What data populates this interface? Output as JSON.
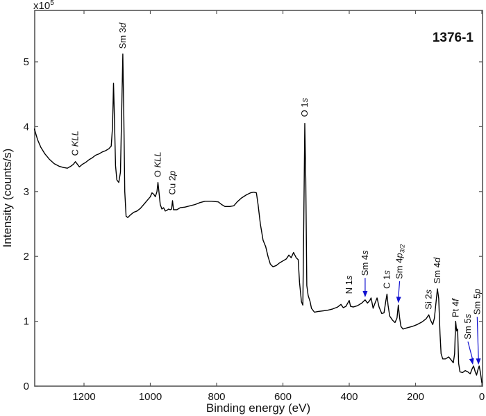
{
  "chart_data": {
    "type": "line",
    "title": "1376-1",
    "xlabel": "Binding energy (eV)",
    "ylabel": "Intensity (counts/s)",
    "y_multiplier_label": "x10",
    "y_multiplier_exp": "5",
    "xlim": [
      1350,
      0
    ],
    "ylim": [
      0,
      5.8
    ],
    "x_reversed": true,
    "grid": false,
    "x_ticks": [
      1200,
      1000,
      800,
      600,
      400,
      200,
      0
    ],
    "y_ticks": [
      0,
      1,
      2,
      3,
      4,
      5
    ],
    "series": [
      {
        "name": "XPS survey spectrum",
        "color": "#000000",
        "points": [
          [
            1350,
            3.97
          ],
          [
            1340,
            3.8
          ],
          [
            1330,
            3.68
          ],
          [
            1318,
            3.58
          ],
          [
            1305,
            3.5
          ],
          [
            1290,
            3.43
          ],
          [
            1275,
            3.39
          ],
          [
            1262,
            3.37
          ],
          [
            1250,
            3.36
          ],
          [
            1240,
            3.39
          ],
          [
            1232,
            3.42
          ],
          [
            1226,
            3.46
          ],
          [
            1220,
            3.42
          ],
          [
            1214,
            3.38
          ],
          [
            1205,
            3.42
          ],
          [
            1195,
            3.45
          ],
          [
            1185,
            3.49
          ],
          [
            1175,
            3.52
          ],
          [
            1165,
            3.56
          ],
          [
            1155,
            3.58
          ],
          [
            1145,
            3.61
          ],
          [
            1135,
            3.63
          ],
          [
            1125,
            3.66
          ],
          [
            1118,
            3.7
          ],
          [
            1114,
            4.0
          ],
          [
            1111,
            4.67
          ],
          [
            1108,
            4.1
          ],
          [
            1105,
            3.4
          ],
          [
            1101,
            3.18
          ],
          [
            1095,
            3.14
          ],
          [
            1090,
            3.3
          ],
          [
            1086,
            4.3
          ],
          [
            1083,
            5.12
          ],
          [
            1080,
            4.2
          ],
          [
            1077,
            3.0
          ],
          [
            1073,
            2.62
          ],
          [
            1068,
            2.6
          ],
          [
            1060,
            2.64
          ],
          [
            1050,
            2.68
          ],
          [
            1040,
            2.7
          ],
          [
            1030,
            2.74
          ],
          [
            1020,
            2.8
          ],
          [
            1010,
            2.86
          ],
          [
            1000,
            2.92
          ],
          [
            995,
            2.98
          ],
          [
            990,
            2.96
          ],
          [
            985,
            2.92
          ],
          [
            980,
            3.0
          ],
          [
            977,
            3.14
          ],
          [
            974,
            3.0
          ],
          [
            970,
            2.8
          ],
          [
            965,
            2.73
          ],
          [
            960,
            2.75
          ],
          [
            955,
            2.7
          ],
          [
            950,
            2.71
          ],
          [
            945,
            2.73
          ],
          [
            940,
            2.72
          ],
          [
            936,
            2.73
          ],
          [
            933,
            2.86
          ],
          [
            930,
            2.72
          ],
          [
            920,
            2.72
          ],
          [
            910,
            2.75
          ],
          [
            895,
            2.76
          ],
          [
            880,
            2.78
          ],
          [
            865,
            2.8
          ],
          [
            850,
            2.83
          ],
          [
            835,
            2.85
          ],
          [
            815,
            2.85
          ],
          [
            795,
            2.84
          ],
          [
            785,
            2.8
          ],
          [
            775,
            2.77
          ],
          [
            760,
            2.77
          ],
          [
            748,
            2.78
          ],
          [
            738,
            2.84
          ],
          [
            725,
            2.9
          ],
          [
            710,
            2.95
          ],
          [
            698,
            2.98
          ],
          [
            688,
            2.99
          ],
          [
            680,
            2.98
          ],
          [
            675,
            2.8
          ],
          [
            668,
            2.5
          ],
          [
            660,
            2.25
          ],
          [
            652,
            2.15
          ],
          [
            645,
            2.0
          ],
          [
            638,
            1.88
          ],
          [
            630,
            1.84
          ],
          [
            620,
            1.86
          ],
          [
            610,
            1.9
          ],
          [
            600,
            1.93
          ],
          [
            590,
            1.96
          ],
          [
            582,
            2.02
          ],
          [
            575,
            1.98
          ],
          [
            568,
            2.06
          ],
          [
            560,
            1.98
          ],
          [
            554,
            1.95
          ],
          [
            550,
            1.6
          ],
          [
            544,
            1.3
          ],
          [
            540,
            1.25
          ],
          [
            537,
            2.6
          ],
          [
            534,
            4.05
          ],
          [
            531,
            3.2
          ],
          [
            528,
            1.55
          ],
          [
            524,
            1.4
          ],
          [
            518,
            1.3
          ],
          [
            514,
            1.2
          ],
          [
            505,
            1.14
          ],
          [
            495,
            1.15
          ],
          [
            480,
            1.16
          ],
          [
            465,
            1.17
          ],
          [
            450,
            1.19
          ],
          [
            435,
            1.22
          ],
          [
            425,
            1.26
          ],
          [
            418,
            1.21
          ],
          [
            410,
            1.23
          ],
          [
            400,
            1.32
          ],
          [
            396,
            1.23
          ],
          [
            388,
            1.22
          ],
          [
            375,
            1.24
          ],
          [
            362,
            1.28
          ],
          [
            352,
            1.33
          ],
          [
            345,
            1.28
          ],
          [
            338,
            1.32
          ],
          [
            334,
            1.36
          ],
          [
            328,
            1.2
          ],
          [
            322,
            1.28
          ],
          [
            316,
            1.36
          ],
          [
            310,
            1.22
          ],
          [
            302,
            1.12
          ],
          [
            295,
            1.13
          ],
          [
            290,
            1.3
          ],
          [
            286,
            1.42
          ],
          [
            283,
            1.25
          ],
          [
            278,
            1.08
          ],
          [
            270,
            1.02
          ],
          [
            262,
            0.98
          ],
          [
            256,
            1.05
          ],
          [
            252,
            1.25
          ],
          [
            248,
            1.05
          ],
          [
            244,
            0.92
          ],
          [
            238,
            0.88
          ],
          [
            225,
            0.9
          ],
          [
            210,
            0.92
          ],
          [
            195,
            0.95
          ],
          [
            180,
            0.99
          ],
          [
            168,
            1.04
          ],
          [
            160,
            1.1
          ],
          [
            155,
            1.02
          ],
          [
            148,
            0.95
          ],
          [
            143,
            1.05
          ],
          [
            138,
            1.3
          ],
          [
            134,
            1.5
          ],
          [
            130,
            1.35
          ],
          [
            126,
            0.8
          ],
          [
            123,
            0.5
          ],
          [
            118,
            0.42
          ],
          [
            110,
            0.42
          ],
          [
            100,
            0.45
          ],
          [
            92,
            0.4
          ],
          [
            86,
            0.36
          ],
          [
            82,
            0.5
          ],
          [
            79,
            1.0
          ],
          [
            76,
            0.85
          ],
          [
            73,
            0.88
          ],
          [
            70,
            0.35
          ],
          [
            66,
            0.22
          ],
          [
            58,
            0.21
          ],
          [
            50,
            0.24
          ],
          [
            42,
            0.22
          ],
          [
            35,
            0.19
          ],
          [
            30,
            0.26
          ],
          [
            25,
            0.31
          ],
          [
            20,
            0.22
          ],
          [
            16,
            0.17
          ],
          [
            12,
            0.25
          ],
          [
            8,
            0.31
          ],
          [
            4,
            0.2
          ],
          [
            0,
            0.05
          ]
        ]
      }
    ],
    "annotations": [
      {
        "label": "C KLL",
        "italic_part": "KLL",
        "x": 1226,
        "text_y": 3.55,
        "arrow": false
      },
      {
        "label": "Sm 3d",
        "italic_part": "d",
        "x": 1083,
        "text_y": 5.2,
        "arrow": false
      },
      {
        "label": "O KLL",
        "italic_part": "KLL",
        "x": 977,
        "text_y": 3.22,
        "arrow": false
      },
      {
        "label": "Cu 2p",
        "italic_part": "p",
        "x": 933,
        "text_y": 2.95,
        "arrow": false
      },
      {
        "label": "O 1s",
        "italic_part": "s",
        "x": 534,
        "text_y": 4.15,
        "arrow": false
      },
      {
        "label": "N 1s",
        "italic_part": "s",
        "x": 400,
        "text_y": 1.42,
        "arrow": false
      },
      {
        "label": "Sm 4s",
        "italic_part": "s",
        "x": 352,
        "text_y": 1.7,
        "arrow": true,
        "arrow_color": "#1010d0",
        "arrow_tip": [
          352,
          1.37
        ]
      },
      {
        "label": "C 1s",
        "italic_part": "s",
        "x": 286,
        "text_y": 1.5,
        "arrow": false
      },
      {
        "label": "Sm 4p3/2",
        "italic_part": "p",
        "subscript": "3/2",
        "x": 248,
        "text_y": 1.65,
        "arrow": true,
        "arrow_color": "#1010d0",
        "arrow_tip": [
          252,
          1.28
        ]
      },
      {
        "label": "Si 2s",
        "italic_part": "s",
        "x": 160,
        "text_y": 1.18,
        "arrow": false
      },
      {
        "label": "Sm 4d",
        "italic_part": "d",
        "x": 134,
        "text_y": 1.58,
        "arrow": false
      },
      {
        "label": "Pt 4f",
        "italic_part": "f",
        "x": 79,
        "text_y": 1.06,
        "arrow": false
      },
      {
        "label": "Sm 5s",
        "italic_part": "s",
        "x": 42,
        "text_y": 0.72,
        "arrow": true,
        "arrow_color": "#1010d0",
        "arrow_tip": [
          27,
          0.33
        ]
      },
      {
        "label": "Sm 5p",
        "italic_part": "p",
        "x": 14,
        "text_y": 1.1,
        "arrow": true,
        "arrow_color": "#1010d0",
        "arrow_tip": [
          10,
          0.33
        ]
      }
    ]
  },
  "labels": {
    "title": "1376-1",
    "xlabel": "Binding energy (eV)",
    "ylabel": "Intensity (counts/s)",
    "multiplier": "x10",
    "multiplier_exp": "5"
  },
  "colors": {
    "axis": "#555555",
    "line": "#000000",
    "arrow": "#1010d0",
    "text": "#111111"
  }
}
